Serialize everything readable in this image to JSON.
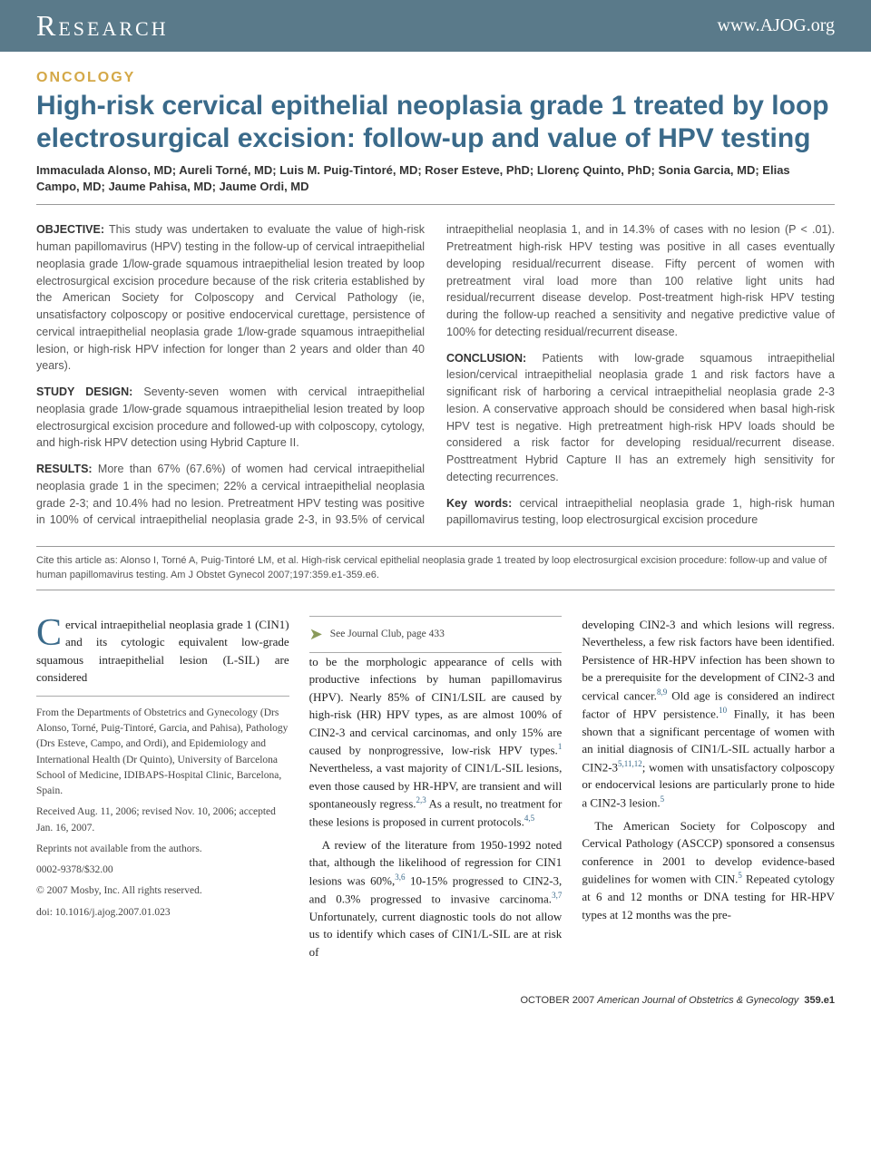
{
  "header": {
    "section": "Research",
    "url": "www.AJOG.org"
  },
  "category": "ONCOLOGY",
  "title": "High-risk cervical epithelial neoplasia grade 1 treated by loop electrosurgical excision: follow-up and value of HPV testing",
  "authors": "Immaculada Alonso, MD; Aureli Torné, MD; Luis M. Puig-Tintoré, MD; Roser Esteve, PhD; Llorenç Quinto, PhD; Sonia Garcia, MD; Elias Campo, MD; Jaume Pahisa, MD; Jaume Ordi, MD",
  "abstract": {
    "objective_label": "OBJECTIVE:",
    "objective_text": " This study was undertaken to evaluate the value of high-risk human papillomavirus (HPV) testing in the follow-up of cervical intraepithelial neoplasia grade 1/low-grade squamous intraepithelial lesion treated by loop electrosurgical excision procedure because of the risk criteria established by the American Society for Colposcopy and Cervical Pathology (ie, unsatisfactory colposcopy or positive endocervical curettage, persistence of cervical intraepithelial neoplasia grade 1/low-grade squamous intraepithelial lesion, or high-risk HPV infection for longer than 2 years and older than 40 years).",
    "study_label": "STUDY DESIGN:",
    "study_text": " Seventy-seven women with cervical intraepithelial neoplasia grade 1/low-grade squamous intraepithelial lesion treated by loop electrosurgical excision procedure and followed-up with colposcopy, cytology, and high-risk HPV detection using Hybrid Capture II.",
    "results_label": "RESULTS:",
    "results_text": " More than 67% (67.6%) of women had cervical intraepithelial neoplasia grade 1 in the specimen; 22% a cervical intraepithelial neoplasia grade 2-3; and 10.4% had no lesion. Pretreatment HPV testing was positive in 100% of cervical intraepithelial neoplasia grade 2-3, in 93.5% of cervical intraepithelial neoplasia 1, and in 14.3% of cases with no lesion (P < .01). Pretreatment high-risk HPV testing was positive in all cases eventually developing residual/recurrent disease. Fifty percent of women with pretreatment viral load more than 100 relative light units had residual/recurrent disease develop. Post-treatment high-risk HPV testing during the follow-up reached a sensitivity and negative predictive value of 100% for detecting residual/recurrent disease.",
    "conclusion_label": "CONCLUSION:",
    "conclusion_text": " Patients with low-grade squamous intraepithelial lesion/cervical intraepithelial neoplasia grade 1 and risk factors have a significant risk of harboring a cervical intraepithelial neoplasia grade 2-3 lesion. A conservative approach should be considered when basal high-risk HPV test is negative. High pretreatment high-risk HPV loads should be considered a risk factor for developing residual/recurrent disease. Posttreatment Hybrid Capture II has an extremely high sensitivity for detecting recurrences.",
    "keywords_label": "Key words:",
    "keywords_text": " cervical intraepithelial neoplasia grade 1, high-risk human papillomavirus testing, loop electrosurgical excision procedure"
  },
  "citation": "Cite this article as: Alonso I, Torné A, Puig-Tintoré LM, et al. High-risk cervical epithelial neoplasia grade 1 treated by loop electrosurgical excision procedure: follow-up and value of human papillomavirus testing. Am J Obstet Gynecol 2007;197:359.e1-359.e6.",
  "body": {
    "p1": "ervical intraepithelial neoplasia grade 1 (CIN1) and its cytologic equivalent low-grade squamous intraepithelial lesion (L-SIL) are considered",
    "p2_a": "to be the morphologic appearance of cells with productive infections by human papillomavirus (HPV). Nearly 85% of CIN1/LSIL are caused by high-risk (HR) HPV types, as are almost 100% of CIN2-3 and cervical carcinomas, and only 15% are caused by nonprogressive, low-risk HPV types.",
    "p2_b": " Nevertheless, a vast majority of CIN1/L-SIL lesions, even those caused by HR-HPV, are transient and will spontaneously regress.",
    "p2_c": " As a result, no treatment for these lesions is proposed in current protocols.",
    "p3_a": "A review of the literature from 1950-1992 noted that, although the likelihood of regression for CIN1 lesions was 60%,",
    "p3_b": " 10-15% progressed to CIN2-3, and 0.3% progressed to invasive carcinoma.",
    "p3_c": " Unfortunately, current diagnostic tools do not allow us to identify which cases of CIN1/L-SIL are at risk of",
    "p4_a": "developing CIN2-3 and which lesions will regress. Nevertheless, a few risk factors have been identified. Persistence of HR-HPV infection has been shown to be a prerequisite for the development of CIN2-3 and cervical cancer.",
    "p4_b": " Old age is considered an indirect factor of HPV persistence.",
    "p4_c": " Finally, it has been shown that a significant percentage of women with an initial diagnosis of CIN1/L-SIL actually harbor a CIN2-3",
    "p4_d": "; women with unsatisfactory colposcopy or endocervical lesions are particularly prone to hide a CIN2-3 lesion.",
    "p5_a": "The American Society for Colposcopy and Cervical Pathology (ASCCP) sponsored a consensus conference in 2001 to develop evidence-based guidelines for women with CIN.",
    "p5_b": " Repeated cytology at 6 and 12 months or DNA testing for HR-HPV types at 12 months was the pre-"
  },
  "refs": {
    "r1": "1",
    "r23": "2,3",
    "r45": "4,5",
    "r36": "3,6",
    "r37": "3,7",
    "r89": "8,9",
    "r10": "10",
    "r51112": "5,11,12",
    "r5": "5"
  },
  "affiliation": {
    "from": "From the Departments of Obstetrics and Gynecology (Drs Alonso, Torné, Puig-Tintoré, Garcia, and Pahisa), Pathology (Drs Esteve, Campo, and Ordi), and Epidemiology and International Health (Dr Quinto), University of Barcelona School of Medicine, IDIBAPS-Hospital Clinic, Barcelona, Spain.",
    "received": "Received Aug. 11, 2006; revised Nov. 10, 2006; accepted Jan. 16, 2007.",
    "reprints": "Reprints not available from the authors.",
    "issn": "0002-9378/$32.00",
    "copyright": "© 2007 Mosby, Inc. All rights reserved.",
    "doi": "doi: 10.1016/j.ajog.2007.01.023"
  },
  "journal_club": "See Journal Club, page 433",
  "footer": {
    "issue": "OCTOBER 2007",
    "journal": "American Journal of Obstetrics & Gynecology",
    "page": "359.e1"
  },
  "dropcap": "C"
}
